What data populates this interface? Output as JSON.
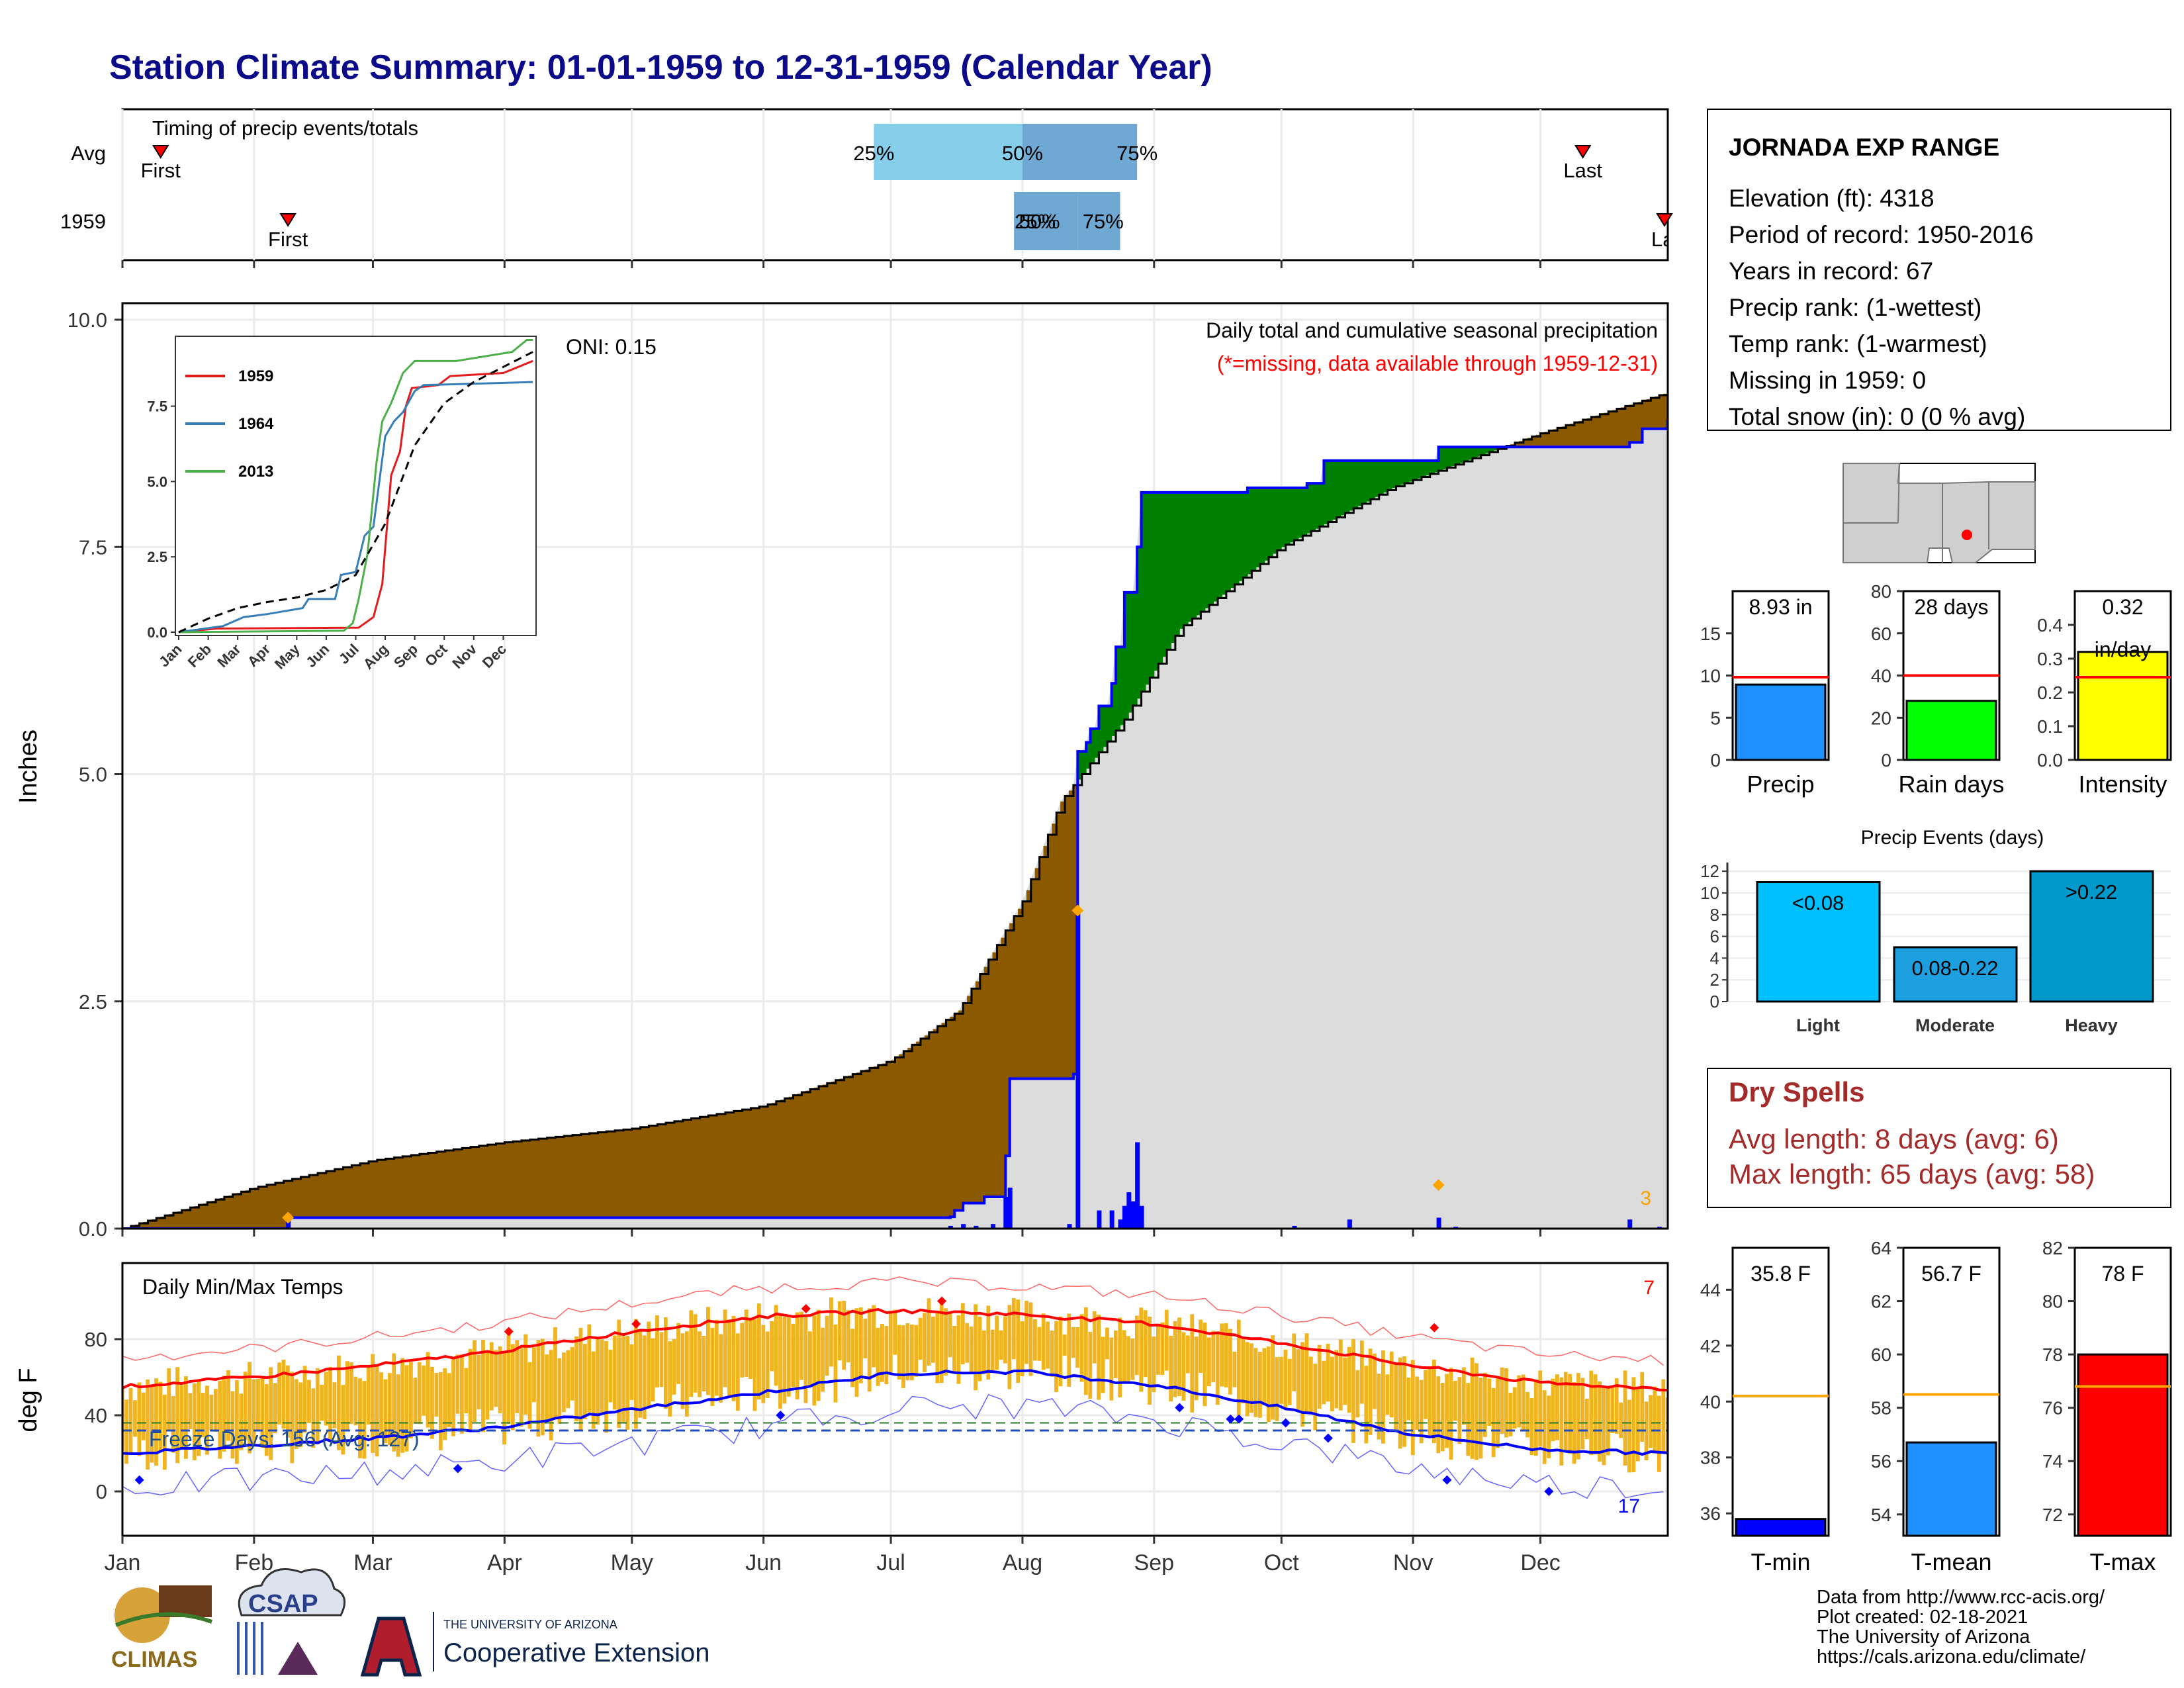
{
  "title": "Station Climate Summary: 01-01-1959 to 12-31-1959 (Calendar Year)",
  "colors": {
    "title": "#0b0b8a",
    "cum_avg_fill": "#8b5a00",
    "cum_surplus_fill": "#008000",
    "cum_line": "#0000ff",
    "missing_gray": "#dcdcdc",
    "tmax_bar": "#f0b41e",
    "tmax_line": "#ff0000",
    "tmin_line": "#0000ff",
    "dry_spells": "#a52a2a",
    "freeze_line": "#1f4fbf"
  },
  "timing_panel": {
    "label": "Timing of precip events/totals",
    "rows": [
      "Avg",
      "1959"
    ],
    "avg": {
      "first_label": "First",
      "last_label": "Last",
      "p25": "25%",
      "p50": "50%",
      "p75": "75%"
    },
    "year": {
      "first_label": "First",
      "last_label": "Last",
      "p25": "25%",
      "p50": "50%",
      "p75": "75%"
    }
  },
  "precip_panel": {
    "ylabel": "Inches",
    "annotation_title": "Daily total and cumulative seasonal precipitation",
    "annotation_missing": "(*=missing, data available through 1959-12-31)",
    "oni": "ONI: 0.15",
    "count_label": "3",
    "yticks": [
      "0.0",
      "2.5",
      "5.0",
      "7.5",
      "10.0"
    ]
  },
  "inset": {
    "legend": [
      "1959",
      "1964",
      "2013"
    ],
    "legend_colors": [
      "#e41a1c",
      "#377eb8",
      "#4daf4a"
    ],
    "yticks": [
      "0.0",
      "2.5",
      "5.0",
      "7.5"
    ],
    "xticks": [
      "Jan",
      "Feb",
      "Mar",
      "Apr",
      "May",
      "Jun",
      "Jul",
      "Aug",
      "Sep",
      "Oct",
      "Nov",
      "Dec"
    ]
  },
  "temp_panel": {
    "label": "Daily Min/Max Temps",
    "ylabel": "deg F",
    "freeze_text": "Freeze Days: 156 (Avg: 127)",
    "max_count": "7",
    "min_count": "17",
    "yticks": [
      "0",
      "40",
      "80"
    ],
    "months": [
      "Jan",
      "Feb",
      "Mar",
      "Apr",
      "May",
      "Jun",
      "Jul",
      "Aug",
      "Sep",
      "Oct",
      "Nov",
      "Dec"
    ]
  },
  "station": {
    "name": "JORNADA EXP RANGE",
    "lines": [
      "Elevation (ft): 4318",
      "Period of record: 1950-2016",
      "Years in record: 67",
      "Precip rank:  (1-wettest)",
      "Temp rank:  (1-warmest)",
      "Missing in 1959: 0",
      "Total snow (in): 0 (0 % avg)"
    ]
  },
  "summary_bars": [
    {
      "label": "Precip",
      "value_text": "8.93 in",
      "value": 8.93,
      "avg": 9.8,
      "ymax": 20,
      "ticks": [
        0,
        5,
        10,
        15
      ],
      "color": "#1e90ff"
    },
    {
      "label": "Rain days",
      "value_text": "28 days",
      "value": 28,
      "avg": 40,
      "ymax": 80,
      "ticks": [
        0,
        20,
        40,
        60,
        80
      ],
      "color": "#00ff00"
    },
    {
      "label": "Intensity",
      "value_text": "0.32",
      "value_text2": "in/day",
      "value": 0.32,
      "avg": 0.245,
      "ymax": 0.5,
      "ticks": [
        0.0,
        0.1,
        0.2,
        0.3,
        0.4
      ],
      "color": "#ffff00"
    }
  ],
  "precip_events": {
    "title": "Precip Events (days)",
    "categories": [
      "Light",
      "Moderate",
      "Heavy"
    ],
    "bar_labels": [
      "<0.08",
      "0.08-0.22",
      ">0.22"
    ],
    "values": [
      11,
      5,
      12
    ],
    "colors": [
      "#00bfff",
      "#1e9fe0",
      "#0099cc"
    ],
    "yticks": [
      0,
      2,
      4,
      6,
      8,
      10,
      12
    ]
  },
  "dry_spells": {
    "title": "Dry Spells",
    "avg_line": "Avg length: 8 days (avg: 6)",
    "max_line": "Max length: 65 days (avg: 58)"
  },
  "temp_bars": [
    {
      "label": "T-min",
      "value_text": "35.8 F",
      "value": 35.8,
      "avg": 40.2,
      "ymin": 35.2,
      "ymax": 45.5,
      "ticks": [
        36,
        38,
        40,
        42,
        44
      ],
      "color": "#0000ff"
    },
    {
      "label": "T-mean",
      "value_text": "56.7 F",
      "value": 56.7,
      "avg": 58.5,
      "ymin": 53.2,
      "ymax": 64,
      "ticks": [
        54,
        56,
        58,
        60,
        62,
        64
      ],
      "color": "#1e90ff"
    },
    {
      "label": "T-max",
      "value_text": "78 F",
      "value": 78,
      "avg": 76.8,
      "ymin": 71.2,
      "ymax": 82,
      "ticks": [
        72,
        74,
        76,
        78,
        80,
        82
      ],
      "color": "#ff0000"
    }
  ],
  "footer": {
    "lines": [
      "Data from http://www.rcc-acis.org/",
      "Plot created: 02-18-2021",
      "The University of Arizona",
      "https://cals.arizona.edu/climate/"
    ],
    "logos": {
      "climas": "CLIMAS",
      "csap": "CSAP",
      "ua_small": "THE UNIVERSITY OF ARIZONA",
      "ua_big": "Cooperative Extension"
    }
  },
  "chart_data": [
    {
      "type": "area",
      "title": "Daily total and cumulative seasonal precipitation",
      "ylabel": "Inches",
      "ylim": [
        0,
        10
      ],
      "x_categories": [
        "Jan",
        "Feb",
        "Mar",
        "Apr",
        "May",
        "Jun",
        "Jul",
        "Aug",
        "Sep",
        "Oct",
        "Nov",
        "Dec"
      ],
      "series": [
        {
          "name": "",
          "points_day_of_year": [
            [
              1,
              0.0
            ],
            [
              32,
              0.45
            ],
            [
              60,
              0.75
            ],
            [
              91,
              0.95
            ],
            [
              121,
              1.1
            ],
            [
              152,
              1.35
            ],
            [
              182,
              1.85
            ],
            [
              198,
              2.4
            ],
            [
              213,
              3.6
            ],
            [
              222,
              4.7
            ],
            [
              237,
              5.6
            ],
            [
              250,
              6.6
            ],
            [
              274,
              7.5
            ],
            [
              300,
              8.15
            ],
            [
              335,
              8.75
            ],
            [
              365,
              9.2
            ]
          ]
        },
        {
          "name": "1959",
          "points_day_of_year": [
            [
              1,
              0.0
            ],
            [
              39,
              0.0
            ],
            [
              40,
              0.12
            ],
            [
              196,
              0.13
            ],
            [
              197,
              0.2
            ],
            [
              199,
              0.28
            ],
            [
              204,
              0.35
            ],
            [
              209,
              0.8
            ],
            [
              210,
              1.65
            ],
            [
              225,
              1.7
            ],
            [
              226,
              5.25
            ],
            [
              228,
              5.35
            ],
            [
              229,
              5.5
            ],
            [
              231,
              5.75
            ],
            [
              234,
              6.0
            ],
            [
              235,
              6.4
            ],
            [
              237,
              7.0
            ],
            [
              240,
              7.5
            ],
            [
              241,
              8.1
            ],
            [
              265,
              8.1
            ],
            [
              266,
              8.15
            ],
            [
              280,
              8.2
            ],
            [
              284,
              8.45
            ],
            [
              310,
              8.45
            ],
            [
              311,
              8.6
            ],
            [
              355,
              8.6
            ],
            [
              356,
              8.65
            ],
            [
              359,
              8.8
            ],
            [
              365,
              8.9
            ]
          ]
        }
      ],
      "daily_precip": [
        [
          40,
          0.12
        ],
        [
          196,
          0.03
        ],
        [
          199,
          0.05
        ],
        [
          202,
          0.03
        ],
        [
          206,
          0.05
        ],
        [
          209,
          0.35
        ],
        [
          210,
          0.45
        ],
        [
          224,
          0.05
        ],
        [
          226,
          3.5
        ],
        [
          231,
          0.2
        ],
        [
          234,
          0.2
        ],
        [
          236,
          0.1
        ],
        [
          237,
          0.25
        ],
        [
          238,
          0.4
        ],
        [
          239,
          0.3
        ],
        [
          240,
          0.95
        ],
        [
          241,
          0.25
        ],
        [
          277,
          0.03
        ],
        [
          290,
          0.1
        ],
        [
          311,
          0.12
        ],
        [
          315,
          0.02
        ],
        [
          356,
          0.1
        ],
        [
          363,
          0.02
        ]
      ]
    },
    {
      "type": "line",
      "title": "",
      "ylim": [
        0,
        9.5
      ],
      "x_categories": [
        "Jan",
        "Feb",
        "Mar",
        "Apr",
        "May",
        "Jun",
        "Jul",
        "Aug",
        "Sep",
        "Oct",
        "Nov",
        "Dec"
      ],
      "series": [
        {
          "name": "1959",
          "points_month": [
            [
              0,
              0.0
            ],
            [
              1.3,
              0.12
            ],
            [
              6.1,
              0.15
            ],
            [
              6.6,
              0.5
            ],
            [
              6.9,
              1.6
            ],
            [
              7.2,
              5.2
            ],
            [
              7.5,
              6.0
            ],
            [
              7.7,
              7.5
            ],
            [
              7.9,
              8.1
            ],
            [
              8.8,
              8.2
            ],
            [
              9.2,
              8.5
            ],
            [
              11.0,
              8.6
            ],
            [
              12.0,
              9.0
            ]
          ]
        },
        {
          "name": "1964",
          "points_month": [
            [
              0,
              0.0
            ],
            [
              1.5,
              0.2
            ],
            [
              2.2,
              0.5
            ],
            [
              3.0,
              0.6
            ],
            [
              4.2,
              0.8
            ],
            [
              4.4,
              1.1
            ],
            [
              5.3,
              1.1
            ],
            [
              5.5,
              1.9
            ],
            [
              6.0,
              2.0
            ],
            [
              6.3,
              3.2
            ],
            [
              6.6,
              3.5
            ],
            [
              6.8,
              5.0
            ],
            [
              7.0,
              6.5
            ],
            [
              7.3,
              7.0
            ],
            [
              7.6,
              7.3
            ],
            [
              8.0,
              8.0
            ],
            [
              8.3,
              8.2
            ],
            [
              12.0,
              8.3
            ]
          ]
        },
        {
          "name": "2013",
          "points_month": [
            [
              0,
              0.0
            ],
            [
              5.6,
              0.05
            ],
            [
              5.9,
              0.3
            ],
            [
              6.1,
              1.1
            ],
            [
              6.4,
              2.6
            ],
            [
              6.7,
              5.6
            ],
            [
              6.9,
              7.0
            ],
            [
              7.2,
              7.6
            ],
            [
              7.6,
              8.6
            ],
            [
              8.0,
              9.0
            ],
            [
              8.6,
              9.0
            ],
            [
              9.4,
              9.0
            ],
            [
              11.3,
              9.3
            ],
            [
              11.8,
              9.7
            ],
            [
              12.0,
              9.7
            ]
          ]
        },
        {
          "name": "",
          "points_month": [
            [
              0,
              0.0
            ],
            [
              1,
              0.45
            ],
            [
              2,
              0.8
            ],
            [
              3,
              1.0
            ],
            [
              4,
              1.15
            ],
            [
              5,
              1.4
            ],
            [
              6,
              1.9
            ],
            [
              7,
              3.6
            ],
            [
              8,
              6.2
            ],
            [
              9,
              7.6
            ],
            [
              10,
              8.3
            ],
            [
              11,
              8.8
            ],
            [
              12,
              9.3
            ]
          ]
        }
      ]
    },
    {
      "type": "bar",
      "title": "Daily Min/Max Temps",
      "ylabel": "deg F",
      "ylim": [
        -25,
        110
      ],
      "x_categories": [
        "Jan",
        "Feb",
        "Mar",
        "Apr",
        "May",
        "Jun",
        "Jul",
        "Aug",
        "Sep",
        "Oct",
        "Nov",
        "Dec"
      ],
      "series": [
        {
          "name": "",
          "points_day_of_year": [
            [
              1,
              55
            ],
            [
              32,
              60
            ],
            [
              60,
              66
            ],
            [
              91,
              74
            ],
            [
              121,
              84
            ],
            [
              152,
              92
            ],
            [
              182,
              95
            ],
            [
              213,
              93
            ],
            [
              244,
              88
            ],
            [
              274,
              78
            ],
            [
              305,
              66
            ],
            [
              335,
              57
            ],
            [
              365,
              54
            ]
          ]
        },
        {
          "name": "",
          "points_day_of_year": [
            [
              1,
              20
            ],
            [
              32,
              24
            ],
            [
              60,
              28
            ],
            [
              91,
              34
            ],
            [
              121,
              43
            ],
            [
              152,
              52
            ],
            [
              182,
              62
            ],
            [
              213,
              63
            ],
            [
              244,
              56
            ],
            [
              274,
              44
            ],
            [
              305,
              30
            ],
            [
              335,
              22
            ],
            [
              365,
              20
            ]
          ]
        }
      ],
      "freeze_line": 32
    },
    {
      "type": "bar",
      "title": "Precip Events (days)",
      "categories": [
        "Light",
        "Moderate",
        "Heavy"
      ],
      "values": [
        11,
        5,
        12
      ],
      "ylim": [
        0,
        12
      ]
    },
    {
      "type": "bar",
      "categories": [
        "Precip",
        "Rain days",
        "Intensity",
        "T-min",
        "T-mean",
        "T-max"
      ],
      "values": [
        8.93,
        28,
        0.32,
        35.8,
        56.7,
        78
      ]
    }
  ]
}
